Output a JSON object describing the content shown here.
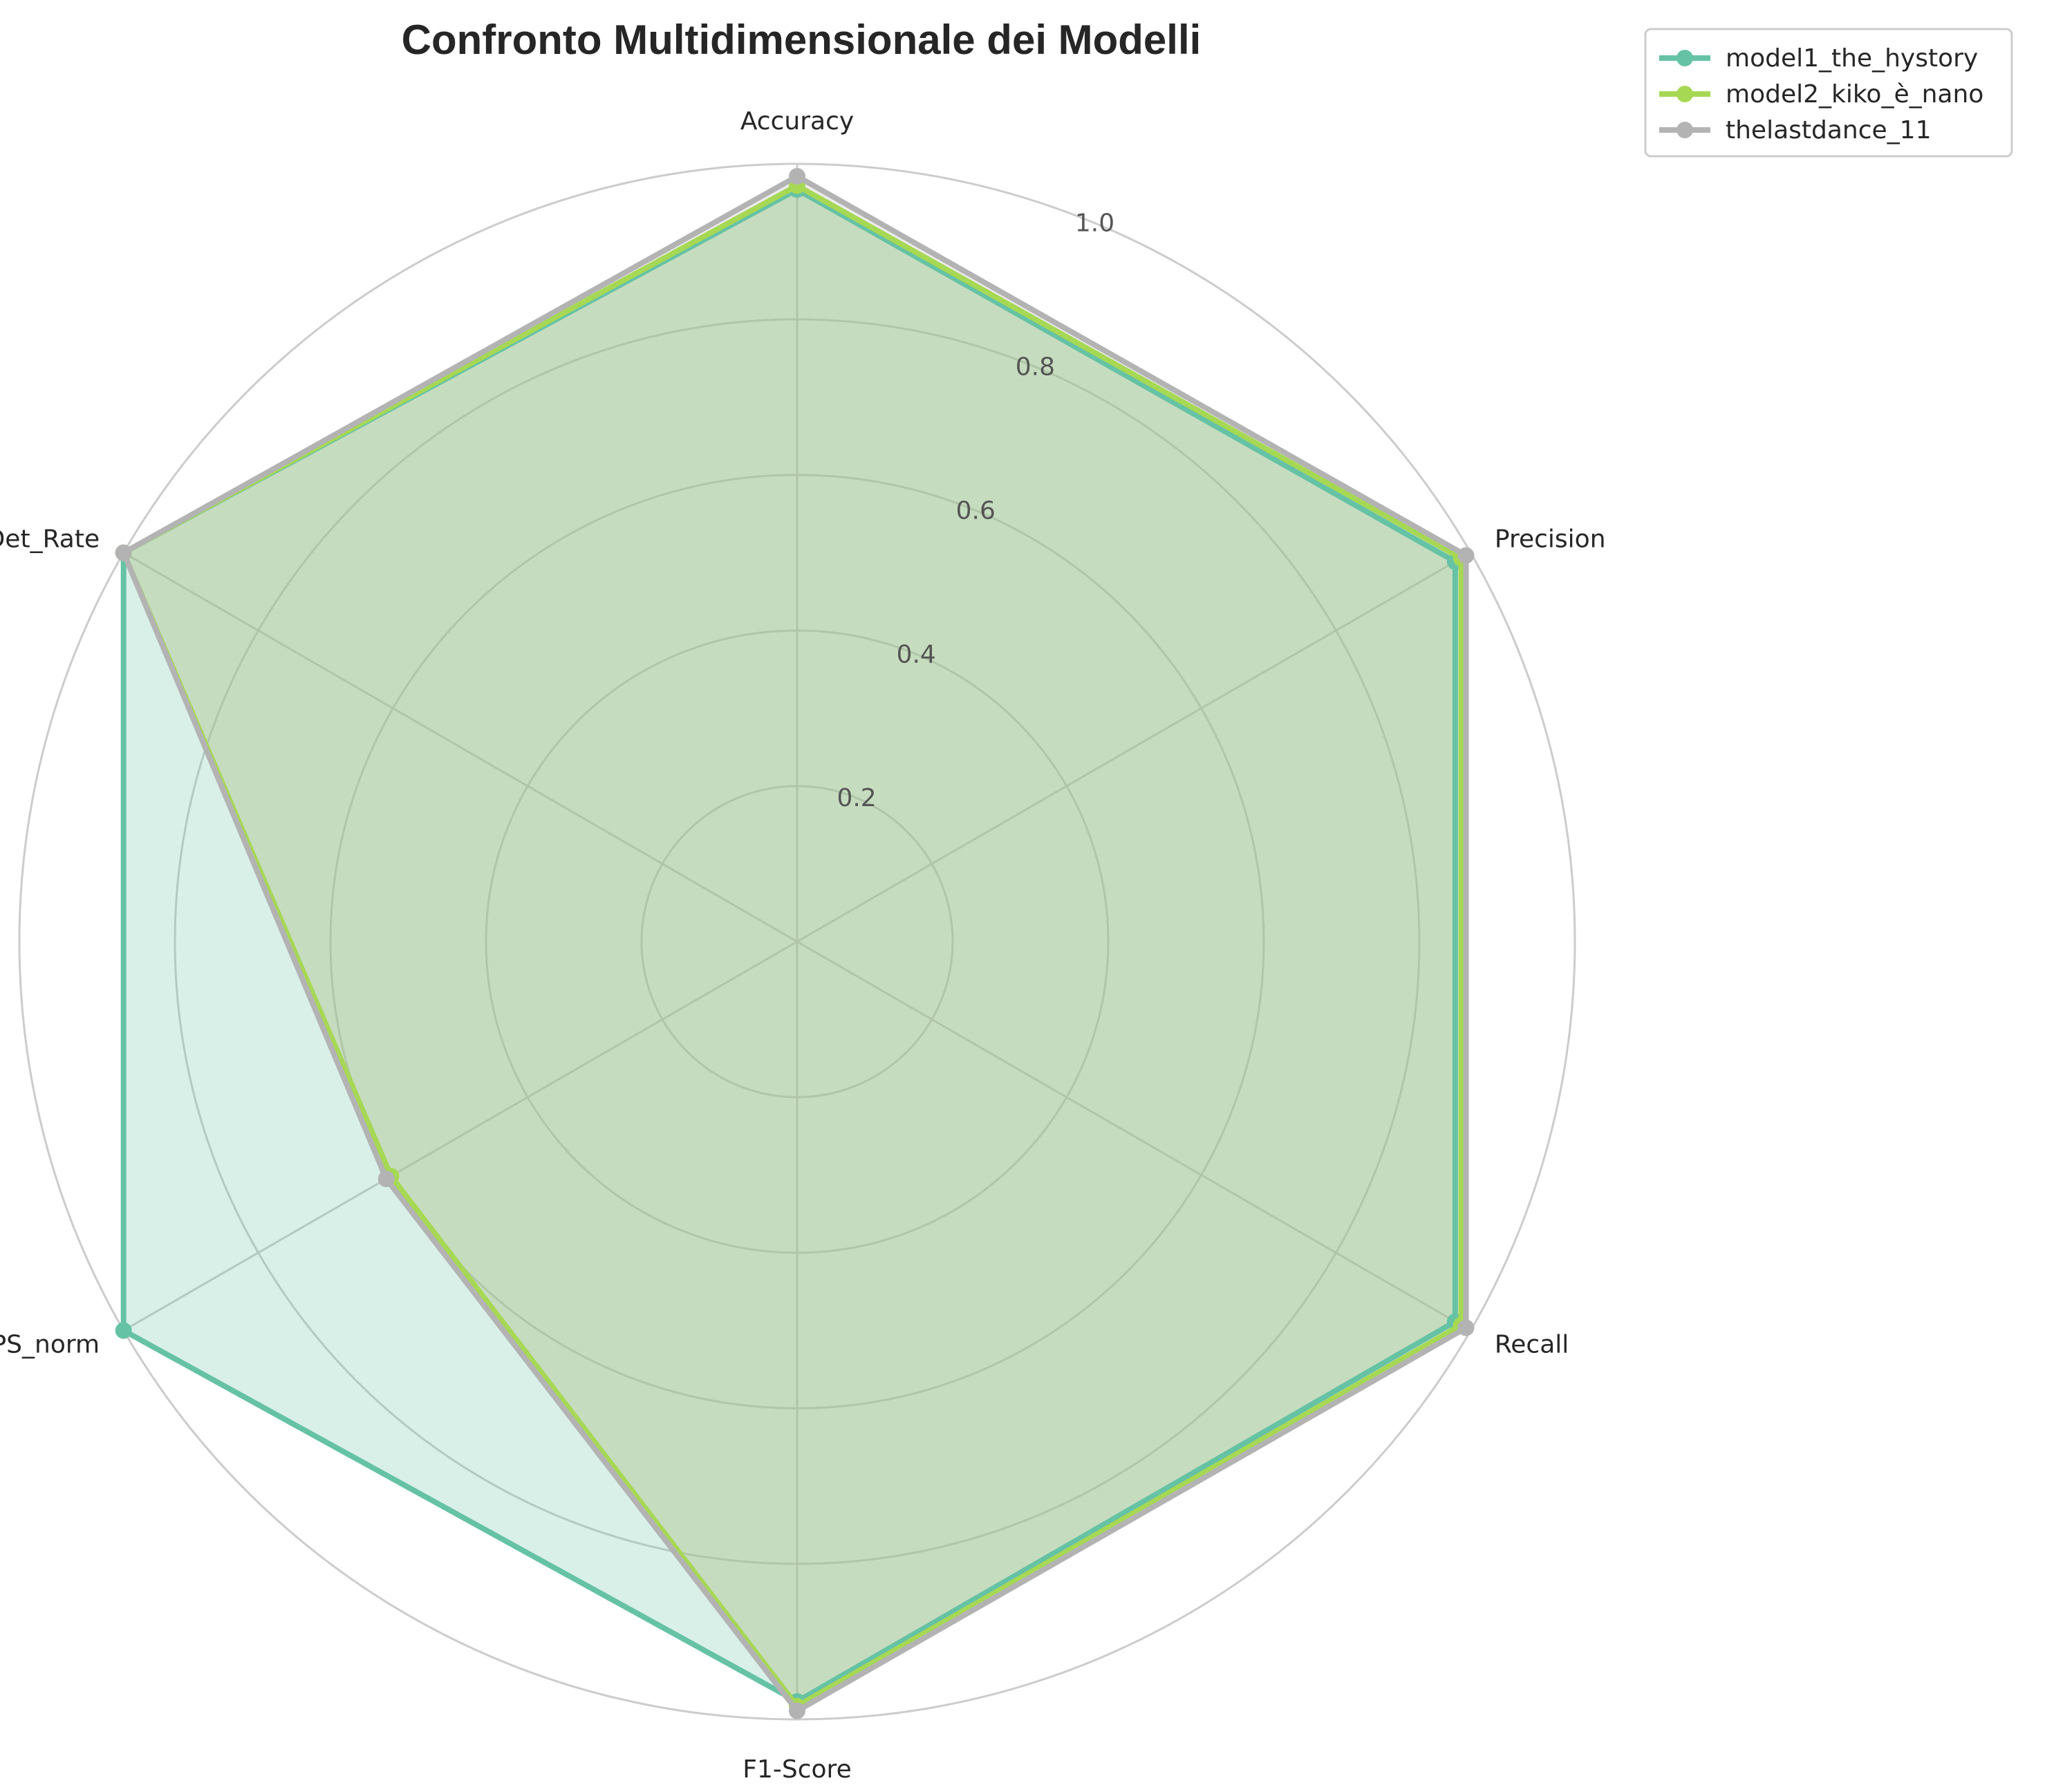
{
  "chart_data": {
    "type": "radar",
    "title": "Confronto Multidimensionale dei Modelli",
    "axes": [
      "Accuracy",
      "Precision",
      "Recall",
      "F1-Score",
      "FPS_norm",
      "Det_Rate"
    ],
    "rlim": [
      0,
      1.0
    ],
    "rticks": [
      0.2,
      0.4,
      0.6,
      0.8,
      1.0
    ],
    "rtick_labels": [
      "0.2",
      "0.4",
      "0.6",
      "0.8",
      "1.0"
    ],
    "grid": true,
    "legend_position": "top-right outside",
    "series": [
      {
        "name": "model1_the_hystory",
        "color": "#66c2a5",
        "values": [
          0.967,
          0.977,
          0.977,
          0.977,
          1.0,
          1.0
        ]
      },
      {
        "name": "model2_kiko_è_nano",
        "color": "#a6d854",
        "values": [
          0.972,
          0.986,
          0.986,
          0.983,
          0.603,
          1.0
        ]
      },
      {
        "name": "thelastdance_11",
        "color": "#b3b3b3",
        "values": [
          0.984,
          0.993,
          0.993,
          0.989,
          0.61,
          1.0
        ]
      }
    ]
  }
}
